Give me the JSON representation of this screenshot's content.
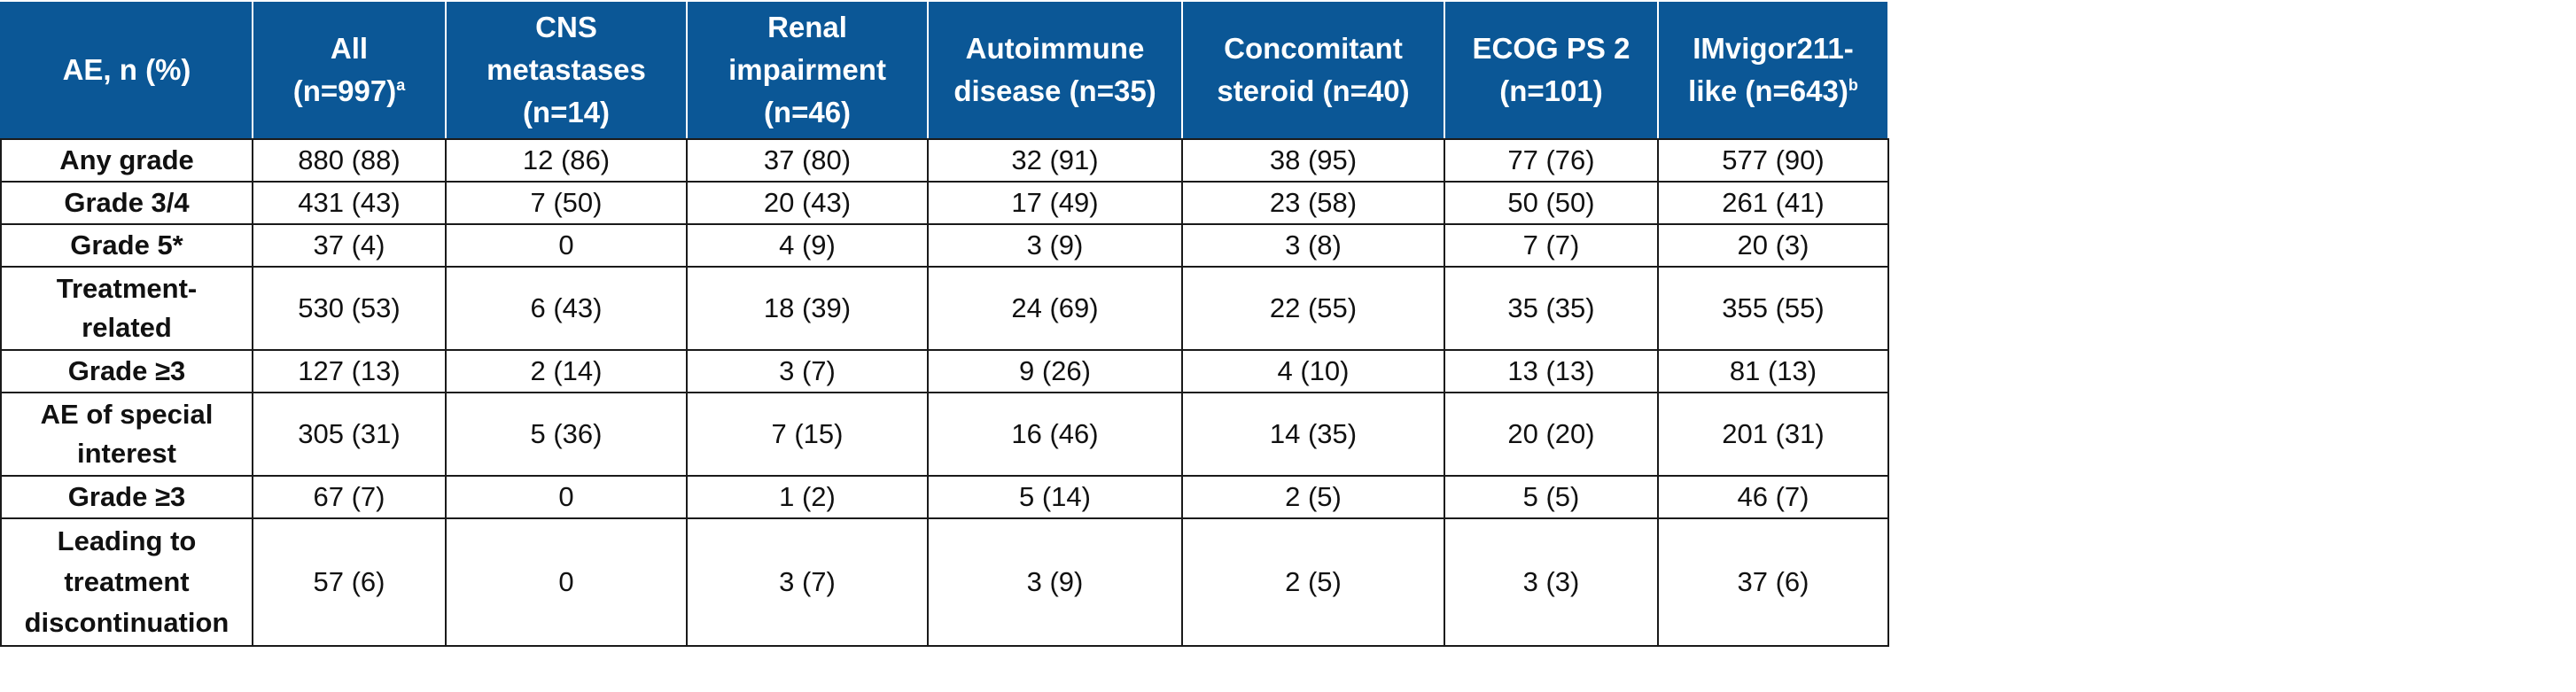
{
  "table": {
    "columns": [
      {
        "label": "AE, n (%)",
        "sup": ""
      },
      {
        "label": "All\n(n=997)",
        "sup": "a"
      },
      {
        "label": "CNS\nmetastases\n(n=14)",
        "sup": ""
      },
      {
        "label": "Renal\nimpairment\n(n=46)",
        "sup": ""
      },
      {
        "label": "Autoimmune\ndisease (n=35)",
        "sup": ""
      },
      {
        "label": "Concomitant\nsteroid (n=40)",
        "sup": ""
      },
      {
        "label": "ECOG PS 2\n(n=101)",
        "sup": ""
      },
      {
        "label": "IMvigor211-\nlike (n=643)",
        "sup": "b"
      }
    ],
    "rows": [
      {
        "label": "Any grade",
        "values": [
          "880 (88)",
          "12 (86)",
          "37 (80)",
          "32 (91)",
          "38 (95)",
          "77 (76)",
          "577 (90)"
        ]
      },
      {
        "label": "Grade 3/4",
        "values": [
          "431 (43)",
          "7 (50)",
          "20 (43)",
          "17 (49)",
          "23 (58)",
          "50 (50)",
          "261 (41)"
        ]
      },
      {
        "label": "Grade 5*",
        "values": [
          "37 (4)",
          "0",
          "4 (9)",
          "3 (9)",
          "3 (8)",
          "7 (7)",
          "20 (3)"
        ]
      },
      {
        "label": "Treatment-\nrelated",
        "values": [
          "530 (53)",
          "6 (43)",
          "18 (39)",
          "24 (69)",
          "22 (55)",
          "35 (35)",
          "355 (55)"
        ]
      },
      {
        "label": "Grade ≥3",
        "values": [
          "127 (13)",
          "2 (14)",
          "3 (7)",
          "9 (26)",
          "4 (10)",
          "13 (13)",
          "81 (13)"
        ]
      },
      {
        "label": "AE of special\ninterest",
        "values": [
          "305 (31)",
          "5 (36)",
          "7 (15)",
          "16 (46)",
          "14 (35)",
          "20 (20)",
          "201 (31)"
        ]
      },
      {
        "label": "Grade ≥3",
        "values": [
          "67 (7)",
          "0",
          "1 (2)",
          "5 (14)",
          "2 (5)",
          "5 (5)",
          "46 (7)"
        ]
      },
      {
        "label": "Leading to\ntreatment\ndiscontinuation",
        "values": [
          "57 (6)",
          "0",
          "3 (7)",
          "3 (9)",
          "2 (5)",
          "3 (3)",
          "37 (6)"
        ]
      }
    ]
  },
  "colors": {
    "header_bg": "#0b5796",
    "header_text": "#ffffff",
    "border": "#1a1a1a"
  }
}
